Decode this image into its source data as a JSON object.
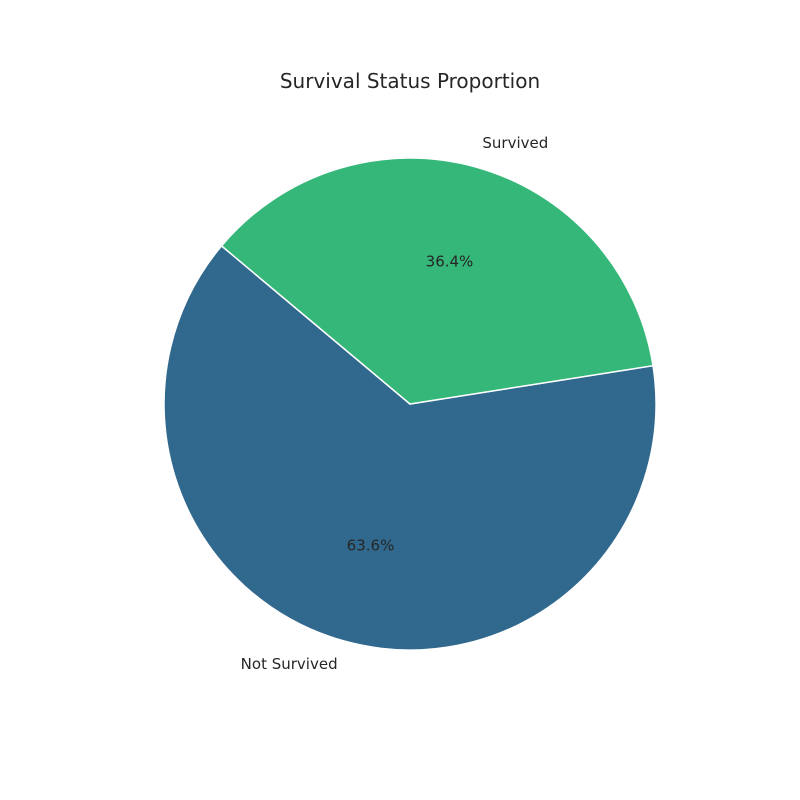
{
  "chart_data": {
    "type": "pie",
    "title": "Survival Status Proportion",
    "slices": [
      {
        "label": "Not Survived",
        "value": 63.6,
        "pct_label": "63.6%",
        "color": "#31688e"
      },
      {
        "label": "Survived",
        "value": 36.4,
        "pct_label": "36.4%",
        "color": "#35b779"
      }
    ],
    "start_angle_deg": 140,
    "direction": "counterclockwise",
    "wedge_edge_color": "#ffffff"
  }
}
